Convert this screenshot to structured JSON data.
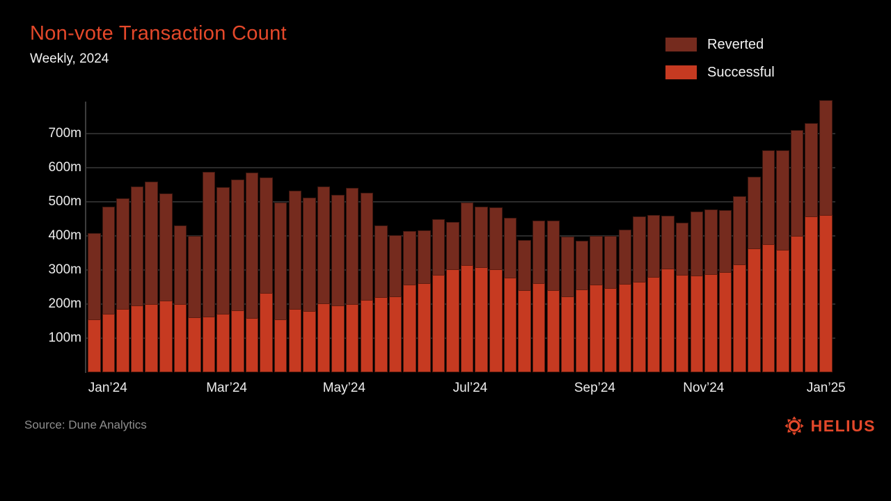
{
  "header": {
    "title": "Non-vote Transaction Count",
    "subtitle": "Weekly, 2024"
  },
  "legend": {
    "items": [
      {
        "label": "Reverted",
        "color": "#752B1E"
      },
      {
        "label": "Successful",
        "color": "#C63A21"
      }
    ]
  },
  "chart_data": {
    "type": "bar",
    "stacked": true,
    "title": "Non-vote Transaction Count",
    "subtitle": "Weekly, 2024",
    "weeks": 52,
    "unit": "m (millions)",
    "ylim": [
      0,
      800
    ],
    "grid": "horizontal",
    "legend_position": "top-right",
    "series": [
      {
        "name": "Successful",
        "color": "#C63A21",
        "values": [
          155,
          172,
          185,
          197,
          200,
          210,
          201,
          162,
          163,
          172,
          181,
          160,
          232,
          155,
          186,
          179,
          203,
          197,
          201,
          212,
          220,
          222,
          257,
          262,
          286,
          303,
          315,
          308,
          303,
          277,
          241,
          262,
          241,
          223,
          242,
          257,
          247,
          259,
          265,
          279,
          305,
          286,
          284,
          288,
          293,
          316,
          364,
          376,
          360,
          401,
          457,
          462
        ]
      },
      {
        "name": "Reverted",
        "color": "#752B1E",
        "values": [
          253,
          313,
          325,
          348,
          360,
          314,
          229,
          238,
          425,
          371,
          384,
          426,
          339,
          342,
          346,
          333,
          342,
          323,
          339,
          315,
          210,
          180,
          157,
          155,
          164,
          138,
          183,
          178,
          180,
          177,
          147,
          183,
          204,
          174,
          143,
          143,
          153,
          160,
          192,
          183,
          155,
          152,
          188,
          189,
          183,
          200,
          210,
          276,
          292,
          309,
          273,
          337
        ]
      }
    ],
    "yticks": [
      {
        "value": 100,
        "label": "100m"
      },
      {
        "value": 200,
        "label": "200m"
      },
      {
        "value": 300,
        "label": "300m"
      },
      {
        "value": 400,
        "label": "400m"
      },
      {
        "value": 500,
        "label": "500m"
      },
      {
        "value": 600,
        "label": "600m"
      },
      {
        "value": 700,
        "label": "700m"
      }
    ],
    "x_ticks": [
      {
        "label": "Jan’24",
        "week": 1.9
      },
      {
        "label": "Mar’24",
        "week": 10.2
      },
      {
        "label": "May’24",
        "week": 18.4
      },
      {
        "label": "Jul’24",
        "week": 27.2
      },
      {
        "label": "Sep’24",
        "week": 35.9
      },
      {
        "label": "Nov’24",
        "week": 43.5
      },
      {
        "label": "Jan’25",
        "week": 52.05
      }
    ]
  },
  "footer": {
    "source": "Source: Dune Analytics",
    "brand": "HELIUS"
  },
  "colors": {
    "background": "#000000",
    "accent": "#E4482A",
    "successful": "#C63A21",
    "reverted": "#752B1E",
    "text": "#F2F2F2",
    "muted": "#8E8E8E",
    "gridline": "#2B2B2B",
    "axis": "#3C3C3C"
  }
}
